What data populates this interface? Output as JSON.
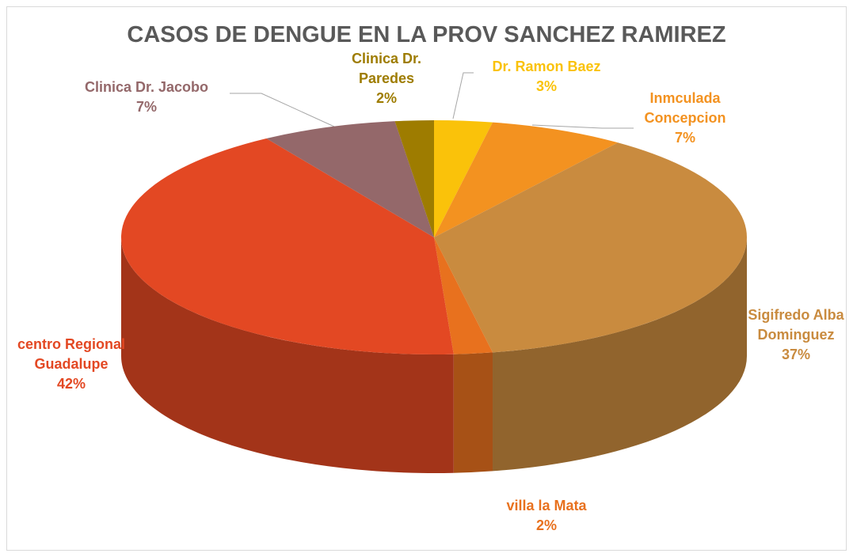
{
  "chart_data": {
    "type": "pie",
    "title": "CASOS DE DENGUE EN LA PROV SANCHEZ RAMIREZ",
    "categories": [
      "Dr. Ramon Baez",
      "Inmculada Concepcion",
      "Sigifredo Alba Dominguez",
      "villa la Mata",
      "centro Regional Guadalupe",
      "Clinica Dr. Jacobo",
      "Clinica Dr. Paredes"
    ],
    "values": [
      3,
      7,
      37,
      2,
      42,
      7,
      2
    ],
    "value_labels": [
      "3%",
      "7%",
      "37%",
      "2%",
      "42%",
      "7%",
      "2%"
    ],
    "colors": [
      "#FAC20A",
      "#F39220",
      "#C98B3F",
      "#E8711E",
      "#E34823",
      "#94686A",
      "#9E7C00"
    ]
  }
}
